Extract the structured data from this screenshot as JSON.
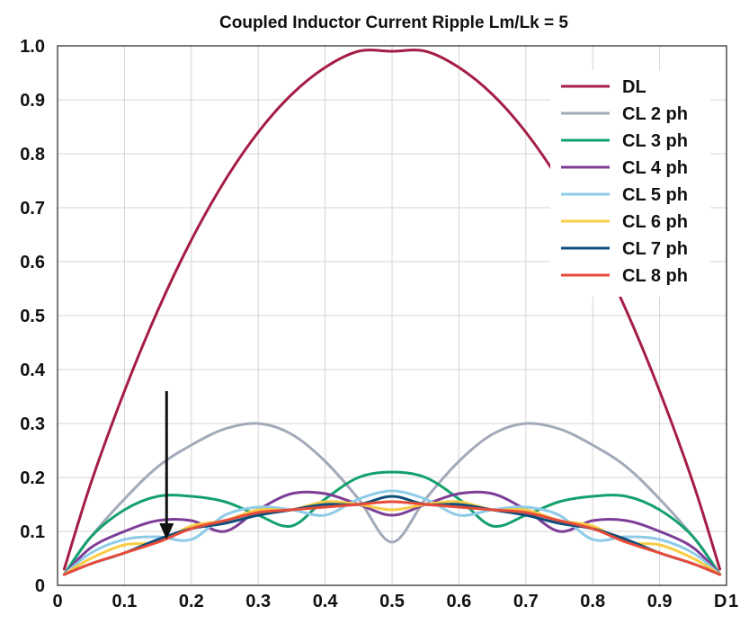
{
  "chart_data": {
    "type": "line",
    "title": "Coupled Inductor Current Ripple Lm/Lk = 5",
    "xlabel": "D",
    "ylabel": "",
    "xlim": [
      0,
      1
    ],
    "ylim": [
      0,
      1.0
    ],
    "x_ticks": [
      "0",
      "0.1",
      "0.2",
      "0.3",
      "0.4",
      "0.5",
      "0.6",
      "0.7",
      "0.8",
      "0.9",
      "1"
    ],
    "y_ticks": [
      "0",
      "0.1",
      "0.2",
      "0.3",
      "0.4",
      "0.5",
      "0.6",
      "0.7",
      "0.8",
      "0.9",
      "1.0"
    ],
    "grid": true,
    "legend_position": "top-right",
    "annotation": {
      "type": "arrow",
      "x": 0.163,
      "y_from": 0.36,
      "y_to": 0.085
    },
    "x": [
      0.01,
      0.05,
      0.1,
      0.15,
      0.2,
      0.25,
      0.3,
      0.35,
      0.4,
      0.45,
      0.5,
      0.55,
      0.6,
      0.65,
      0.7,
      0.75,
      0.8,
      0.85,
      0.9,
      0.95,
      0.99
    ],
    "series": [
      {
        "name": "DL",
        "color": "#a51d45",
        "values": [
          0.03,
          0.19,
          0.36,
          0.51,
          0.64,
          0.75,
          0.84,
          0.91,
          0.96,
          0.99,
          0.99,
          0.99,
          0.96,
          0.91,
          0.84,
          0.75,
          0.64,
          0.51,
          0.36,
          0.19,
          0.03
        ]
      },
      {
        "name": "CL 2 ph",
        "color": "#a2a9b8",
        "values": [
          0.02,
          0.09,
          0.16,
          0.22,
          0.26,
          0.29,
          0.3,
          0.28,
          0.23,
          0.16,
          0.08,
          0.16,
          0.23,
          0.28,
          0.3,
          0.29,
          0.26,
          0.22,
          0.16,
          0.09,
          0.02
        ]
      },
      {
        "name": "CL 3 ph",
        "color": "#13a06f",
        "values": [
          0.02,
          0.09,
          0.14,
          0.165,
          0.165,
          0.155,
          0.13,
          0.11,
          0.16,
          0.2,
          0.21,
          0.2,
          0.16,
          0.11,
          0.13,
          0.155,
          0.165,
          0.165,
          0.14,
          0.09,
          0.02
        ]
      },
      {
        "name": "CL 4 ph",
        "color": "#7d3d97",
        "values": [
          0.02,
          0.07,
          0.1,
          0.12,
          0.12,
          0.1,
          0.14,
          0.17,
          0.17,
          0.15,
          0.13,
          0.15,
          0.17,
          0.17,
          0.14,
          0.1,
          0.12,
          0.12,
          0.1,
          0.07,
          0.02
        ]
      },
      {
        "name": "CL 5 ph",
        "color": "#8ecbe8",
        "values": [
          0.02,
          0.06,
          0.085,
          0.09,
          0.085,
          0.13,
          0.145,
          0.14,
          0.13,
          0.16,
          0.175,
          0.16,
          0.13,
          0.14,
          0.145,
          0.13,
          0.085,
          0.09,
          0.085,
          0.06,
          0.02
        ]
      },
      {
        "name": "CL 6 ph",
        "color": "#f8cc45",
        "values": [
          0.02,
          0.05,
          0.075,
          0.08,
          0.11,
          0.12,
          0.14,
          0.14,
          0.155,
          0.15,
          0.14,
          0.15,
          0.155,
          0.14,
          0.14,
          0.12,
          0.11,
          0.08,
          0.075,
          0.05,
          0.02
        ]
      },
      {
        "name": "CL 7 ph",
        "color": "#0d4f7a",
        "values": [
          0.02,
          0.04,
          0.06,
          0.085,
          0.105,
          0.115,
          0.13,
          0.14,
          0.15,
          0.15,
          0.165,
          0.15,
          0.15,
          0.14,
          0.13,
          0.115,
          0.105,
          0.085,
          0.06,
          0.04,
          0.02
        ]
      },
      {
        "name": "CL 8 ph",
        "color": "#e84b3a",
        "values": [
          0.02,
          0.04,
          0.06,
          0.08,
          0.105,
          0.12,
          0.135,
          0.14,
          0.145,
          0.15,
          0.155,
          0.15,
          0.145,
          0.14,
          0.135,
          0.12,
          0.105,
          0.08,
          0.06,
          0.04,
          0.02
        ]
      }
    ]
  }
}
